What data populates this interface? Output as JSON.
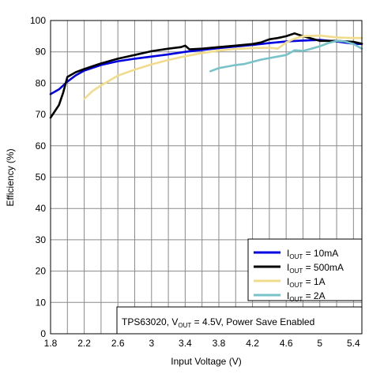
{
  "chart_data": {
    "type": "line",
    "xlabel": "Input Voltage (V)",
    "ylabel": "Efficiency (%)",
    "xlim": [
      1.8,
      5.5
    ],
    "ylim": [
      0,
      100
    ],
    "x_ticks": [
      "1.8",
      "2.2",
      "2.6",
      "3",
      "3.4",
      "3.8",
      "4.2",
      "4.6",
      "5",
      "5.4"
    ],
    "y_ticks": [
      "0",
      "10",
      "20",
      "30",
      "40",
      "50",
      "60",
      "70",
      "80",
      "90",
      "100"
    ],
    "grid": true,
    "legend_position": "bottom-right",
    "annotation": {
      "prefix": "TPS63020, V",
      "sub": "OUT",
      "suffix": " = 4.5V, Power Save Enabled"
    },
    "series": [
      {
        "name": "IOUT = 10mA",
        "label_main": "I",
        "label_sub": "OUT",
        "label_rest": " = 10mA",
        "color": "#0000e0",
        "points": [
          [
            1.8,
            76.5
          ],
          [
            1.9,
            78
          ],
          [
            2.0,
            80.5
          ],
          [
            2.1,
            82.5
          ],
          [
            2.2,
            84
          ],
          [
            2.4,
            85.8
          ],
          [
            2.6,
            87
          ],
          [
            2.8,
            87.8
          ],
          [
            3.0,
            88.5
          ],
          [
            3.2,
            89.2
          ],
          [
            3.4,
            90.0
          ],
          [
            3.6,
            90.6
          ],
          [
            3.8,
            91.2
          ],
          [
            4.0,
            91.7
          ],
          [
            4.2,
            92.2
          ],
          [
            4.4,
            92.8
          ],
          [
            4.6,
            93.3
          ],
          [
            4.8,
            93.6
          ],
          [
            5.0,
            93.8
          ],
          [
            5.2,
            93.3
          ],
          [
            5.4,
            92.6
          ],
          [
            5.5,
            92.5
          ]
        ]
      },
      {
        "name": "IOUT = 500mA",
        "label_main": "I",
        "label_sub": "OUT",
        "label_rest": " = 500mA",
        "color": "#000000",
        "points": [
          [
            1.8,
            69
          ],
          [
            1.9,
            73
          ],
          [
            1.95,
            77
          ],
          [
            2.0,
            82
          ],
          [
            2.1,
            83.5
          ],
          [
            2.2,
            84.5
          ],
          [
            2.4,
            86.3
          ],
          [
            2.6,
            87.8
          ],
          [
            2.8,
            89
          ],
          [
            3.0,
            90.2
          ],
          [
            3.2,
            91.0
          ],
          [
            3.35,
            91.5
          ],
          [
            3.4,
            92.0
          ],
          [
            3.45,
            90.8
          ],
          [
            3.6,
            91.0
          ],
          [
            3.8,
            91.5
          ],
          [
            4.0,
            92.0
          ],
          [
            4.2,
            92.5
          ],
          [
            4.3,
            93.0
          ],
          [
            4.4,
            94.0
          ],
          [
            4.5,
            94.4
          ],
          [
            4.6,
            95.0
          ],
          [
            4.7,
            95.9
          ],
          [
            4.8,
            95.0
          ],
          [
            5.0,
            93.5
          ],
          [
            5.2,
            93.5
          ],
          [
            5.4,
            93.2
          ],
          [
            5.5,
            92.6
          ]
        ]
      },
      {
        "name": "IOUT = 1A",
        "label_main": "I",
        "label_sub": "OUT",
        "label_rest": " = 1A",
        "color": "#f0dc8c",
        "points": [
          [
            2.2,
            75
          ],
          [
            2.3,
            77.5
          ],
          [
            2.4,
            79.3
          ],
          [
            2.6,
            82.4
          ],
          [
            2.8,
            84.3
          ],
          [
            3.0,
            86.0
          ],
          [
            3.2,
            87.4
          ],
          [
            3.4,
            88.6
          ],
          [
            3.6,
            89.6
          ],
          [
            3.8,
            90.4
          ],
          [
            4.0,
            90.9
          ],
          [
            4.2,
            91.2
          ],
          [
            4.4,
            91.3
          ],
          [
            4.5,
            91.0
          ],
          [
            4.6,
            93.0
          ],
          [
            4.7,
            94.2
          ],
          [
            4.8,
            95.0
          ],
          [
            5.0,
            95.2
          ],
          [
            5.2,
            94.6
          ],
          [
            5.4,
            94.4
          ],
          [
            5.5,
            94.4
          ]
        ]
      },
      {
        "name": "IOUT = 2A",
        "label_main": "I",
        "label_sub": "OUT",
        "label_rest": " = 2A",
        "color": "#78c3c8",
        "points": [
          [
            3.7,
            83.8
          ],
          [
            3.8,
            84.8
          ],
          [
            3.9,
            85.3
          ],
          [
            4.0,
            85.8
          ],
          [
            4.1,
            86.1
          ],
          [
            4.2,
            86.8
          ],
          [
            4.3,
            87.5
          ],
          [
            4.4,
            88.0
          ],
          [
            4.5,
            88.5
          ],
          [
            4.6,
            89.0
          ],
          [
            4.7,
            90.5
          ],
          [
            4.8,
            90.3
          ],
          [
            4.9,
            91.0
          ],
          [
            5.0,
            91.8
          ],
          [
            5.1,
            92.8
          ],
          [
            5.2,
            93.5
          ],
          [
            5.3,
            93.3
          ],
          [
            5.4,
            92.5
          ],
          [
            5.5,
            91.0
          ]
        ]
      }
    ]
  }
}
